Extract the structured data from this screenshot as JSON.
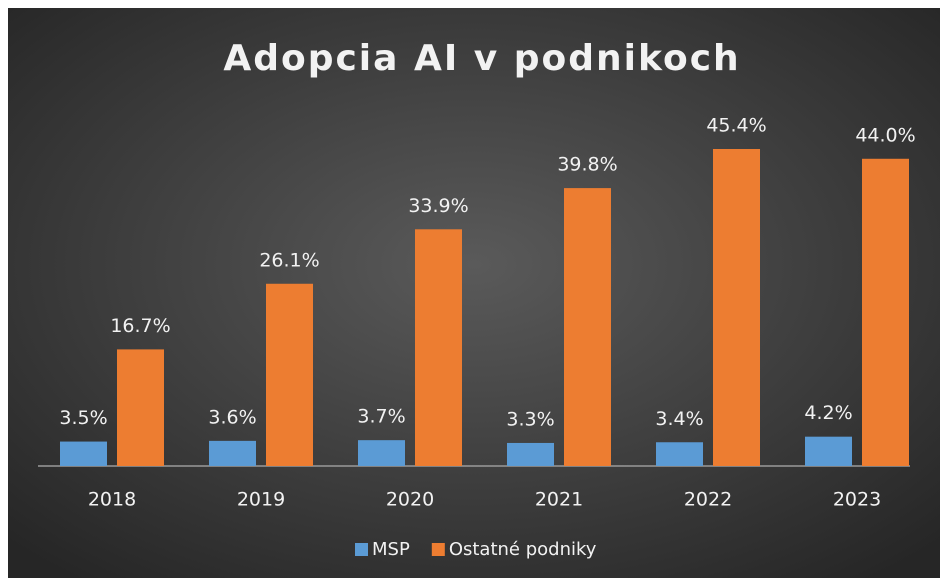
{
  "chart_data": {
    "type": "bar",
    "title": "Adopcia AI v podnikoch",
    "categories": [
      "2018",
      "2019",
      "2020",
      "2021",
      "2022",
      "2023"
    ],
    "series": [
      {
        "name": "MSP",
        "color": "#5b9bd5",
        "values": [
          3.5,
          3.6,
          3.7,
          3.3,
          3.4,
          4.2
        ],
        "value_labels": [
          "3.5%",
          "3.6%",
          "3.7%",
          "3.3%",
          "3.4%",
          "4.2%"
        ]
      },
      {
        "name": "Ostatné podniky",
        "color": "#ed7d31",
        "values": [
          16.7,
          26.1,
          33.9,
          39.8,
          45.4,
          44.0
        ],
        "value_labels": [
          "16.7%",
          "26.1%",
          "33.9%",
          "39.8%",
          "45.4%",
          "44.0%"
        ]
      }
    ],
    "legend": "bottom"
  }
}
